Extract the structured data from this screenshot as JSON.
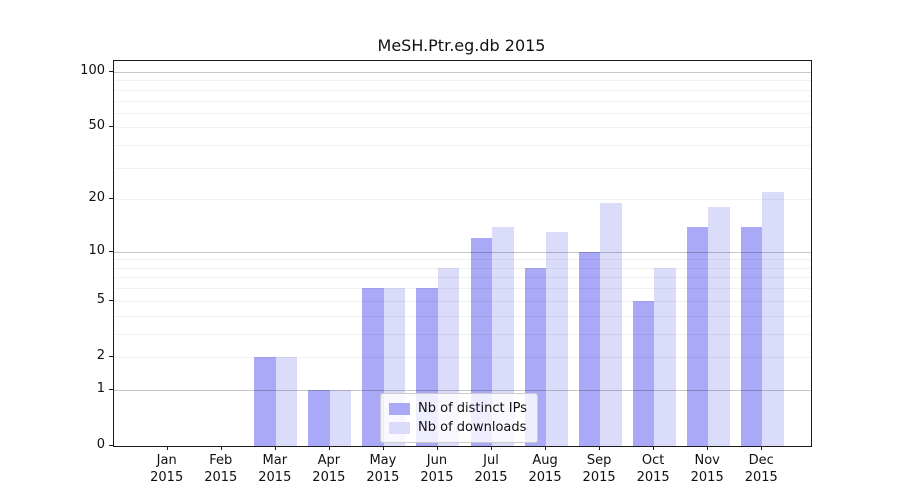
{
  "chart_data": {
    "type": "bar",
    "title": "MeSH.Ptr.eg.db 2015",
    "categories": [
      "Jan 2015",
      "Feb 2015",
      "Mar 2015",
      "Apr 2015",
      "May 2015",
      "Jun 2015",
      "Jul 2015",
      "Aug 2015",
      "Sep 2015",
      "Oct 2015",
      "Nov 2015",
      "Dec 2015"
    ],
    "series": [
      {
        "name": "Nb of distinct IPs",
        "color": "#a9a9f7",
        "values": [
          0,
          0,
          2,
          1,
          6,
          6,
          12,
          8,
          10,
          5,
          14,
          14
        ]
      },
      {
        "name": "Nb of downloads",
        "color": "#dbdbfa",
        "values": [
          0,
          0,
          2,
          1,
          6,
          8,
          14,
          13,
          19,
          8,
          18,
          22
        ]
      }
    ],
    "yscale": "log1p",
    "ylim": [
      0,
      115
    ],
    "yticks": [
      0,
      1,
      2,
      5,
      10,
      20,
      50,
      100
    ],
    "grid": {
      "major": [
        1,
        10,
        100
      ],
      "minor": [
        2,
        3,
        4,
        5,
        6,
        7,
        8,
        9,
        20,
        30,
        40,
        50,
        60,
        70,
        80,
        90
      ]
    },
    "legend_position": "lower-center",
    "xlabel": "",
    "ylabel": ""
  }
}
